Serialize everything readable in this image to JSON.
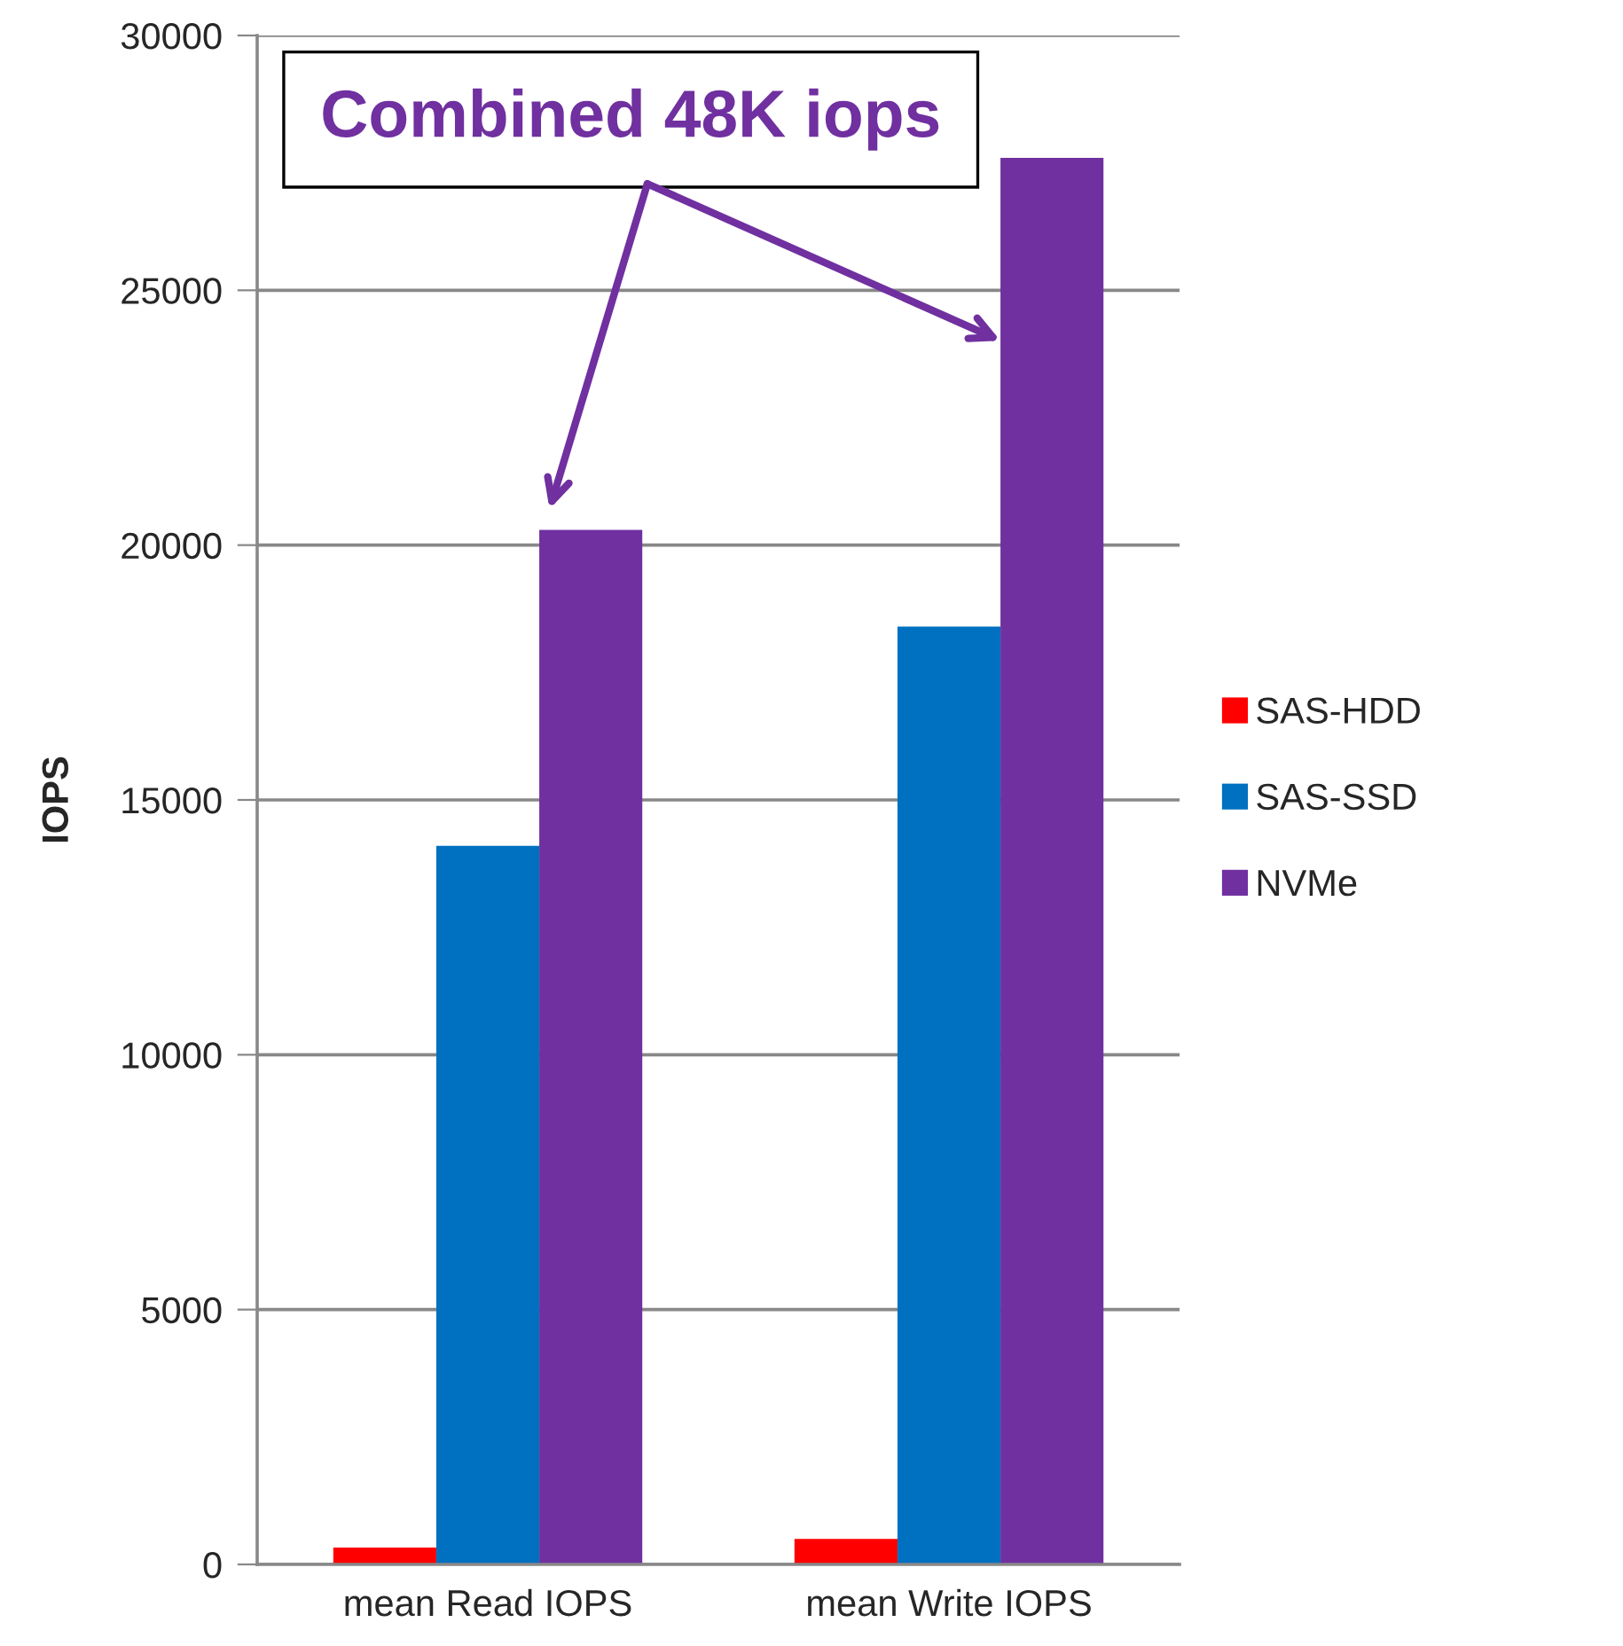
{
  "chart_data": {
    "type": "bar",
    "ylabel": "IOPS",
    "categories": [
      "mean Read IOPS",
      "mean Write IOPS"
    ],
    "series": [
      {
        "name": "SAS-HDD",
        "color": "#ff0000",
        "values": [
          330,
          500
        ]
      },
      {
        "name": "SAS-SSD",
        "color": "#0070c0",
        "values": [
          14100,
          18400
        ]
      },
      {
        "name": "NVMe",
        "color": "#7030a0",
        "values": [
          20300,
          27600
        ]
      }
    ],
    "ylim": [
      0,
      30000
    ],
    "yticks": [
      0,
      5000,
      10000,
      15000,
      20000,
      25000,
      30000
    ],
    "grid": "y",
    "legend": "right",
    "annotations": [
      "Combined 48K iops"
    ]
  }
}
